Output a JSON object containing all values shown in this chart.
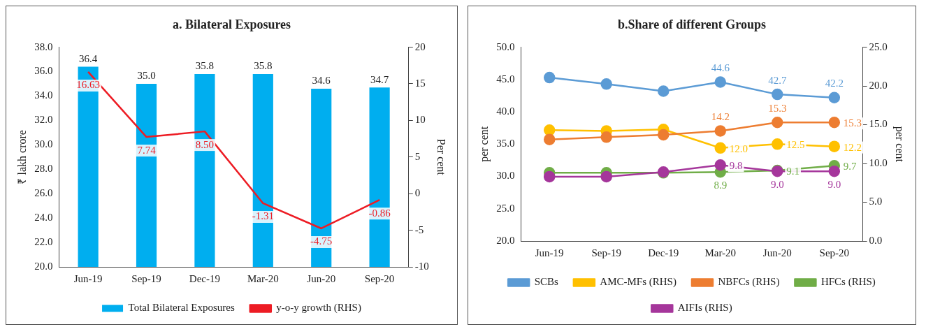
{
  "chart_data": [
    {
      "type": "bar",
      "title": "a. Bilateral Exposures",
      "ylabel": "₹ lakh crore",
      "y2label": "Per cent",
      "categories": [
        "Jun-19",
        "Sep-19",
        "Dec-19",
        "Mar-20",
        "Jun-20",
        "Sep-20"
      ],
      "ylim": [
        20,
        38
      ],
      "yticks": [
        {
          "value": 20,
          "label": "20.0"
        },
        {
          "value": 22,
          "label": "22.0"
        },
        {
          "value": 24,
          "label": "24.0"
        },
        {
          "value": 26,
          "label": "26.0"
        },
        {
          "value": 28,
          "label": "28.0"
        },
        {
          "value": 30,
          "label": "30.0"
        },
        {
          "value": 32,
          "label": "32.0"
        },
        {
          "value": 34,
          "label": "34.0"
        },
        {
          "value": 36,
          "label": "36.0"
        },
        {
          "value": 38,
          "label": "38.0"
        }
      ],
      "y2lim": [
        -10,
        20
      ],
      "y2ticks": [
        -10,
        -5,
        0,
        5,
        10,
        15,
        20
      ],
      "legend": "bottom",
      "grid": false,
      "series": [
        {
          "name": "Total Bilateral Exposures",
          "color": "#00aeef",
          "values": [
            36.4,
            35.0,
            35.8,
            35.8,
            34.6,
            34.7
          ],
          "value_labels": [
            "36.4",
            "35.0",
            "35.8",
            "35.8",
            "34.6",
            "34.7"
          ]
        },
        {
          "name": "y-o-y growth (RHS)",
          "type": "line",
          "axis": "y2",
          "color": "#ed1c24",
          "values": [
            16.63,
            7.74,
            8.5,
            -1.31,
            -4.75,
            -0.86
          ],
          "value_labels": [
            "16.63",
            "7.74",
            "8.50",
            "-1.31",
            "-4.75",
            "-0.86"
          ]
        }
      ]
    },
    {
      "type": "line",
      "title": "b.Share of different Groups",
      "ylabel": "per cent",
      "y2label": "per cent",
      "categories": [
        "Jun-19",
        "Sep-19",
        "Dec-19",
        "Mar-20",
        "Jun-20",
        "Sep-20"
      ],
      "ylim": [
        20,
        50
      ],
      "yticks": [
        {
          "value": 20,
          "label": "20.0"
        },
        {
          "value": 25,
          "label": "25.0"
        },
        {
          "value": 30,
          "label": "30.0"
        },
        {
          "value": 35,
          "label": "35.0"
        },
        {
          "value": 40,
          "label": "40.0"
        },
        {
          "value": 45,
          "label": "45.0"
        },
        {
          "value": 50,
          "label": "50.0"
        }
      ],
      "y2lim": [
        0,
        25
      ],
      "y2ticks": [
        {
          "value": 0,
          "label": "0.0"
        },
        {
          "value": 5,
          "label": "5.0"
        },
        {
          "value": 10,
          "label": "10.0"
        },
        {
          "value": 15,
          "label": "15.0"
        },
        {
          "value": 20,
          "label": "20.0"
        },
        {
          "value": 25,
          "label": "25.0"
        }
      ],
      "legend": "bottom",
      "grid": false,
      "marker": "circle",
      "series": [
        {
          "name": "SCBs",
          "color": "#5b9bd5",
          "values": [
            45.3,
            44.3,
            43.2,
            44.6,
            42.7,
            42.2
          ],
          "value_labels": [
            null,
            null,
            null,
            "44.6",
            "42.7",
            "42.2"
          ]
        },
        {
          "name": "AMC-MFs (RHS)",
          "axis": "y2",
          "color": "#ffc000",
          "values": [
            14.3,
            14.2,
            14.4,
            12.0,
            12.5,
            12.2
          ],
          "value_labels": [
            null,
            null,
            null,
            "12.0",
            "12.5",
            "12.2"
          ]
        },
        {
          "name": "NBFCs (RHS)",
          "axis": "y2",
          "color": "#ed7d31",
          "values": [
            13.1,
            13.4,
            13.7,
            14.2,
            15.3,
            15.3
          ],
          "value_labels": [
            null,
            null,
            null,
            "14.2",
            "15.3",
            "15.3"
          ]
        },
        {
          "name": "HFCs (RHS)",
          "axis": "y2",
          "color": "#70ad47",
          "values": [
            8.8,
            8.8,
            8.8,
            8.9,
            9.1,
            9.7
          ],
          "value_labels": [
            null,
            null,
            null,
            "8.9",
            "9.1",
            "9.7"
          ]
        },
        {
          "name": "AIFIs (RHS)",
          "axis": "y2",
          "color": "#a5369b",
          "values": [
            8.3,
            8.3,
            8.9,
            9.8,
            9.0,
            9.0
          ],
          "value_labels": [
            null,
            null,
            null,
            "9.8",
            "9.0",
            "9.0"
          ]
        }
      ]
    }
  ]
}
